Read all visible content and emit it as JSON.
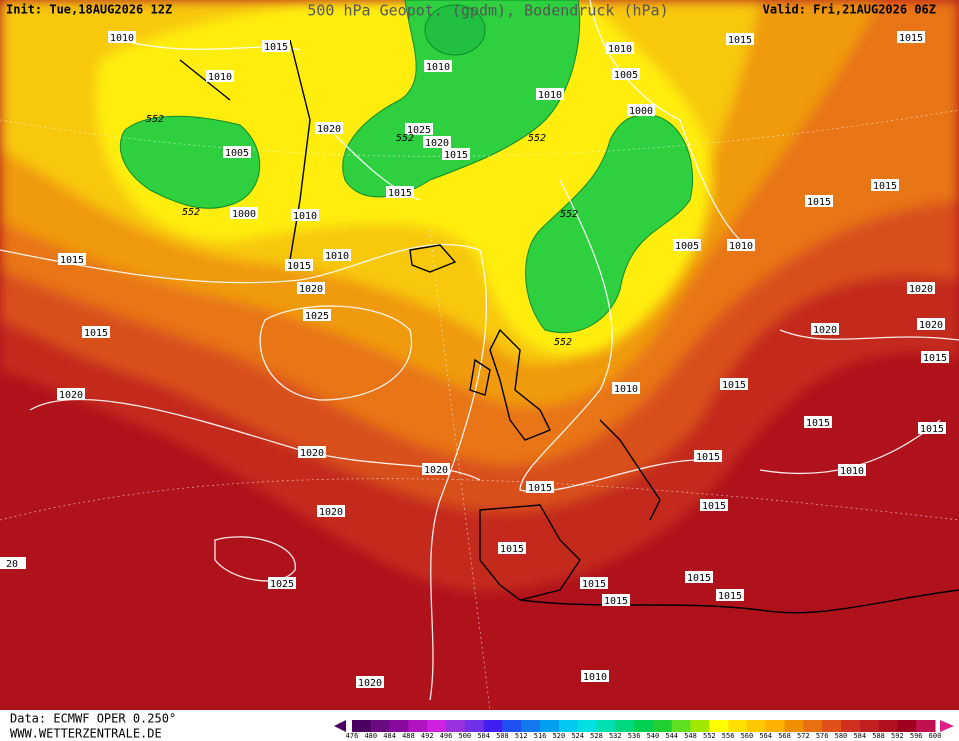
{
  "header": {
    "init": "Init: Tue,18AUG2026 12Z",
    "title": "500 hPa Geopot. (gpdm), Bodendruck (hPa)",
    "valid": "Valid: Fri,21AUG2026 06Z"
  },
  "map": {
    "isobar_labels": [
      "1010",
      "1015",
      "1010",
      "1010",
      "1015",
      "1015",
      "1010",
      "1005",
      "1010",
      "1000",
      "1020",
      "1025",
      "1020",
      "1015",
      "1005",
      "1015",
      "1015",
      "1015",
      "1000",
      "1010",
      "1005",
      "1010",
      "1015",
      "1015",
      "1010",
      "1020",
      "1020",
      "1025",
      "1020",
      "1020",
      "1015",
      "1015",
      "1015",
      "1010",
      "1020",
      "1015",
      "1015",
      "1015",
      "1020",
      "1020",
      "1010",
      "1015",
      "1015",
      "1020",
      "1015",
      "20",
      "1025",
      "1015",
      "1015",
      "1015",
      "1015",
      "1020",
      "1010"
    ],
    "geopotential_labels": [
      "552",
      "552",
      "552",
      "552",
      "552",
      "552"
    ]
  },
  "colorbar": {
    "labels": [
      476,
      480,
      484,
      488,
      492,
      496,
      500,
      504,
      508,
      512,
      516,
      520,
      524,
      528,
      532,
      536,
      540,
      544,
      548,
      552,
      556,
      560,
      564,
      568,
      572,
      576,
      580,
      584,
      588,
      592,
      596,
      600
    ],
    "colors": [
      "#4b0060",
      "#6a0a80",
      "#8a0aa0",
      "#b014c0",
      "#d020e0",
      "#9a30e0",
      "#7030e8",
      "#4020f0",
      "#2050f0",
      "#1478f0",
      "#00a0f0",
      "#00c8f0",
      "#00e0e0",
      "#00e0b0",
      "#00d880",
      "#00d050",
      "#20d030",
      "#60e020",
      "#a0e800",
      "#ffff00",
      "#ffe000",
      "#ffc800",
      "#ffb000",
      "#f09000",
      "#e87010",
      "#e05018",
      "#d03020",
      "#c02020",
      "#b01020",
      "#a00020",
      "#c01050"
    ]
  },
  "footer": {
    "source": "Data: ECMWF OPER 0.250°",
    "site": "WWW.WETTERZENTRALE.DE"
  }
}
